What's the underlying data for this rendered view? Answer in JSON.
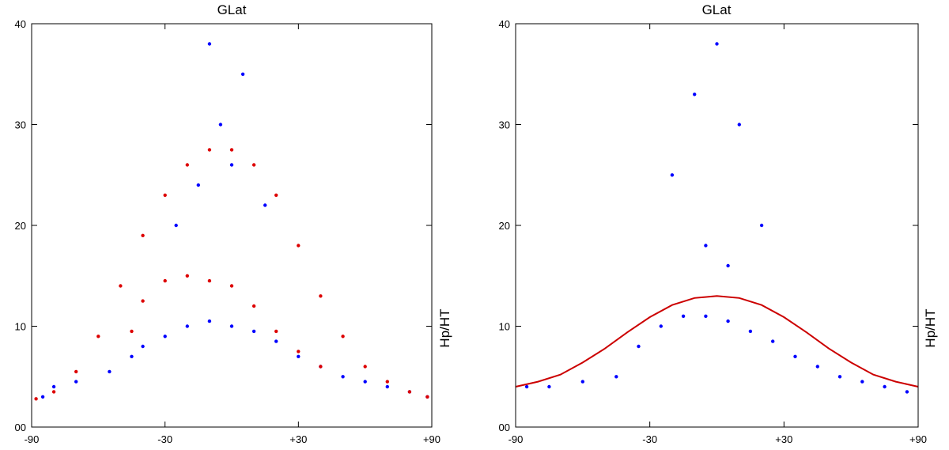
{
  "chart_data": [
    {
      "type": "scatter",
      "title": "GLat",
      "xlabel": "",
      "ylabel": "Hp/HT",
      "xlim": [
        -90,
        90
      ],
      "ylim": [
        0,
        40
      ],
      "x_ticks": [
        -90,
        -30,
        30,
        90
      ],
      "x_tick_labels": [
        "-90",
        "-30",
        "+30",
        "+90"
      ],
      "y_ticks": [
        0,
        10,
        20,
        30,
        40
      ],
      "y_tick_labels": [
        "00",
        "10",
        "20",
        "30",
        "40"
      ],
      "series": [
        {
          "color": "#0000ff",
          "marker": "dot",
          "description_points": [
            [
              -85,
              3.0
            ],
            [
              -80,
              4.0
            ],
            [
              -70,
              4.5
            ],
            [
              -55,
              5.5
            ],
            [
              -45,
              7.0
            ],
            [
              -40,
              8.0
            ],
            [
              -30,
              9.0
            ],
            [
              -20,
              10.0
            ],
            [
              -10,
              10.5
            ],
            [
              0,
              10.0
            ],
            [
              10,
              9.5
            ],
            [
              20,
              8.5
            ],
            [
              30,
              7.0
            ],
            [
              40,
              6.0
            ],
            [
              50,
              5.0
            ],
            [
              60,
              4.5
            ],
            [
              70,
              4.0
            ],
            [
              80,
              3.5
            ],
            [
              88,
              3.0
            ],
            [
              -25,
              20.0
            ],
            [
              -15,
              24.0
            ],
            [
              -5,
              30.0
            ],
            [
              5,
              35.0
            ],
            [
              -10,
              38.0
            ],
            [
              15,
              22.0
            ],
            [
              0,
              26.0
            ]
          ]
        },
        {
          "color": "#dd0000",
          "marker": "dot",
          "description_points": [
            [
              -88,
              2.8
            ],
            [
              -80,
              3.5
            ],
            [
              -70,
              5.5
            ],
            [
              -60,
              9.0
            ],
            [
              -50,
              14.0
            ],
            [
              -40,
              19.0
            ],
            [
              -30,
              23.0
            ],
            [
              -20,
              26.0
            ],
            [
              -10,
              27.5
            ],
            [
              0,
              27.5
            ],
            [
              10,
              26.0
            ],
            [
              20,
              23.0
            ],
            [
              30,
              18.0
            ],
            [
              40,
              13.0
            ],
            [
              50,
              9.0
            ],
            [
              60,
              6.0
            ],
            [
              70,
              4.5
            ],
            [
              80,
              3.5
            ],
            [
              88,
              3.0
            ],
            [
              -45,
              9.5
            ],
            [
              -40,
              12.5
            ],
            [
              -30,
              14.5
            ],
            [
              -20,
              15.0
            ],
            [
              -10,
              14.5
            ],
            [
              0,
              14.0
            ],
            [
              10,
              12.0
            ],
            [
              20,
              9.5
            ],
            [
              30,
              7.5
            ],
            [
              40,
              6.0
            ]
          ]
        }
      ]
    },
    {
      "type": "scatter",
      "title": "GLat",
      "xlabel": "",
      "ylabel": "Hp/HT",
      "xlim": [
        -90,
        90
      ],
      "ylim": [
        0,
        40
      ],
      "x_ticks": [
        -90,
        -30,
        30,
        90
      ],
      "x_tick_labels": [
        "-90",
        "-30",
        "+30",
        "+90"
      ],
      "y_ticks": [
        0,
        10,
        20,
        30,
        40
      ],
      "y_tick_labels": [
        "00",
        "10",
        "20",
        "30",
        "40"
      ],
      "series": [
        {
          "color": "#0000ff",
          "marker": "dot",
          "description_points": [
            [
              -85,
              4.0
            ],
            [
              -75,
              4.0
            ],
            [
              -60,
              4.5
            ],
            [
              -45,
              5.0
            ],
            [
              -35,
              8.0
            ],
            [
              -25,
              10.0
            ],
            [
              -15,
              11.0
            ],
            [
              -5,
              11.0
            ],
            [
              5,
              10.5
            ],
            [
              15,
              9.5
            ],
            [
              25,
              8.5
            ],
            [
              35,
              7.0
            ],
            [
              45,
              6.0
            ],
            [
              55,
              5.0
            ],
            [
              65,
              4.5
            ],
            [
              75,
              4.0
            ],
            [
              85,
              3.5
            ],
            [
              -20,
              25.0
            ],
            [
              -10,
              33.0
            ],
            [
              0,
              38.0
            ],
            [
              10,
              30.0
            ],
            [
              20,
              20.0
            ],
            [
              -5,
              18.0
            ],
            [
              5,
              16.0
            ]
          ]
        }
      ],
      "curve": {
        "color": "#cc0000",
        "x": [
          -90,
          -80,
          -70,
          -60,
          -50,
          -40,
          -30,
          -20,
          -10,
          0,
          10,
          20,
          30,
          40,
          50,
          60,
          70,
          80,
          90
        ],
        "y": [
          4.0,
          4.5,
          5.2,
          6.4,
          7.8,
          9.4,
          10.9,
          12.1,
          12.8,
          13.0,
          12.8,
          12.1,
          10.9,
          9.4,
          7.8,
          6.4,
          5.2,
          4.5,
          4.0
        ]
      }
    }
  ]
}
